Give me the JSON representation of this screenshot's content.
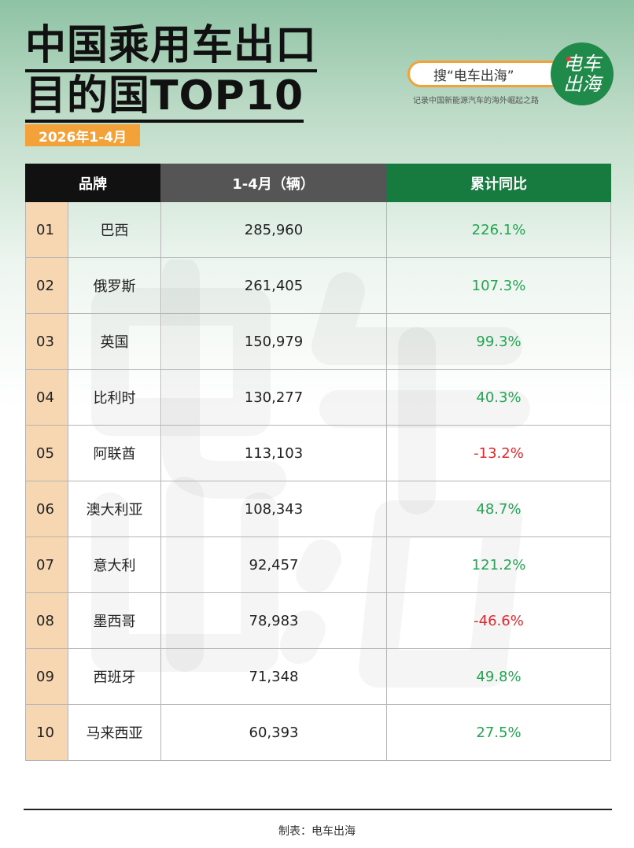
{
  "header": {
    "title_line1": "中国乘用车出口",
    "title_line2": "目的国TOP10",
    "date_badge": "2026年1-4月",
    "search_pill": "搜“电车出海”",
    "slogan": "记录中国新能源汽车的海外崛起之路",
    "logo_line1": "电车",
    "logo_line2": "出海"
  },
  "table": {
    "columns": [
      "品牌",
      "1-4月（辆）",
      "累计同比"
    ],
    "rows": [
      {
        "rank": "01",
        "country": "巴西",
        "volume": "285,960",
        "yoy": "226.1%",
        "trend": "pos"
      },
      {
        "rank": "02",
        "country": "俄罗斯",
        "volume": "261,405",
        "yoy": "107.3%",
        "trend": "pos"
      },
      {
        "rank": "03",
        "country": "英国",
        "volume": "150,979",
        "yoy": "99.3%",
        "trend": "pos"
      },
      {
        "rank": "04",
        "country": "比利时",
        "volume": "130,277",
        "yoy": "40.3%",
        "trend": "pos"
      },
      {
        "rank": "05",
        "country": "阿联酋",
        "volume": "113,103",
        "yoy": "-13.2%",
        "trend": "neg"
      },
      {
        "rank": "06",
        "country": "澳大利亚",
        "volume": "108,343",
        "yoy": "48.7%",
        "trend": "pos"
      },
      {
        "rank": "07",
        "country": "意大利",
        "volume": "92,457",
        "yoy": "121.2%",
        "trend": "pos"
      },
      {
        "rank": "08",
        "country": "墨西哥",
        "volume": "78,983",
        "yoy": "-46.6%",
        "trend": "neg"
      },
      {
        "rank": "09",
        "country": "西班牙",
        "volume": "71,348",
        "yoy": "49.8%",
        "trend": "pos"
      },
      {
        "rank": "10",
        "country": "马来西亚",
        "volume": "60,393",
        "yoy": "27.5%",
        "trend": "pos"
      }
    ]
  },
  "footer": {
    "credit": "制表：电车出海"
  },
  "colors": {
    "accent_green": "#177a3f",
    "accent_orange": "#f3a23a",
    "positive": "#22a552",
    "negative": "#e0282e"
  }
}
